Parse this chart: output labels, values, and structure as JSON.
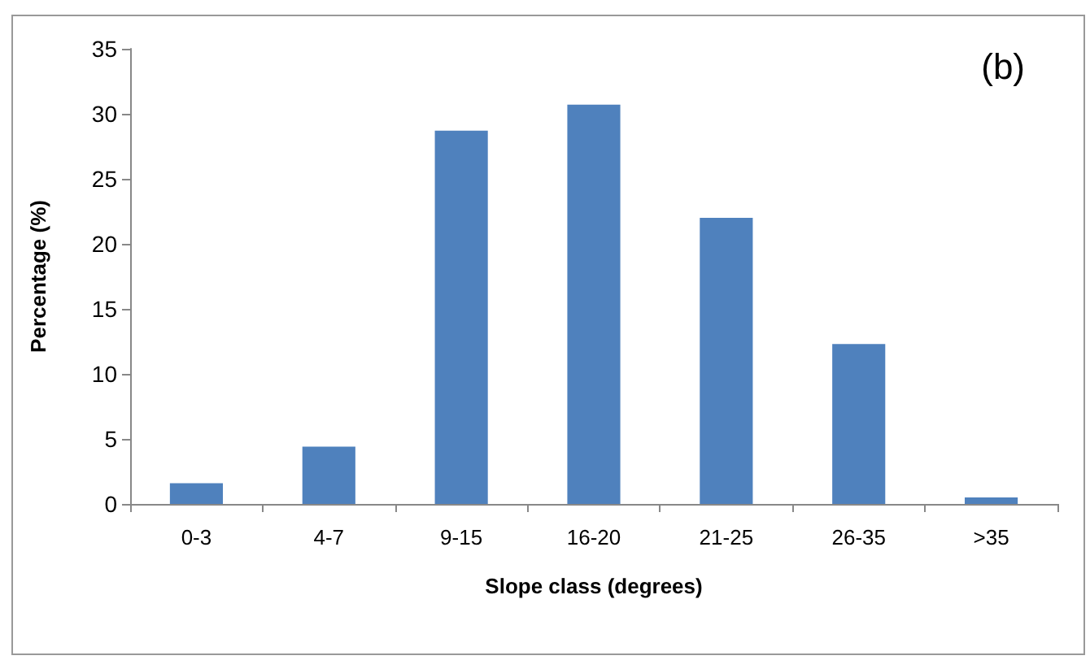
{
  "chart_data": {
    "type": "bar",
    "xlabel": "Slope class (degrees)",
    "ylabel": "Percentage (%)",
    "annotations": [
      "(b)"
    ],
    "categories": [
      "0-3",
      "4-7",
      "9-15",
      "16-20",
      "21-25",
      "26-35",
      ">35"
    ],
    "values": [
      1.6,
      4.4,
      28.7,
      30.7,
      22.0,
      12.3,
      0.5
    ],
    "color": "#4f81bd",
    "ylim": [
      0,
      35
    ],
    "yticks": [
      0,
      5,
      10,
      15,
      20,
      25,
      30,
      35
    ],
    "grid": false
  }
}
